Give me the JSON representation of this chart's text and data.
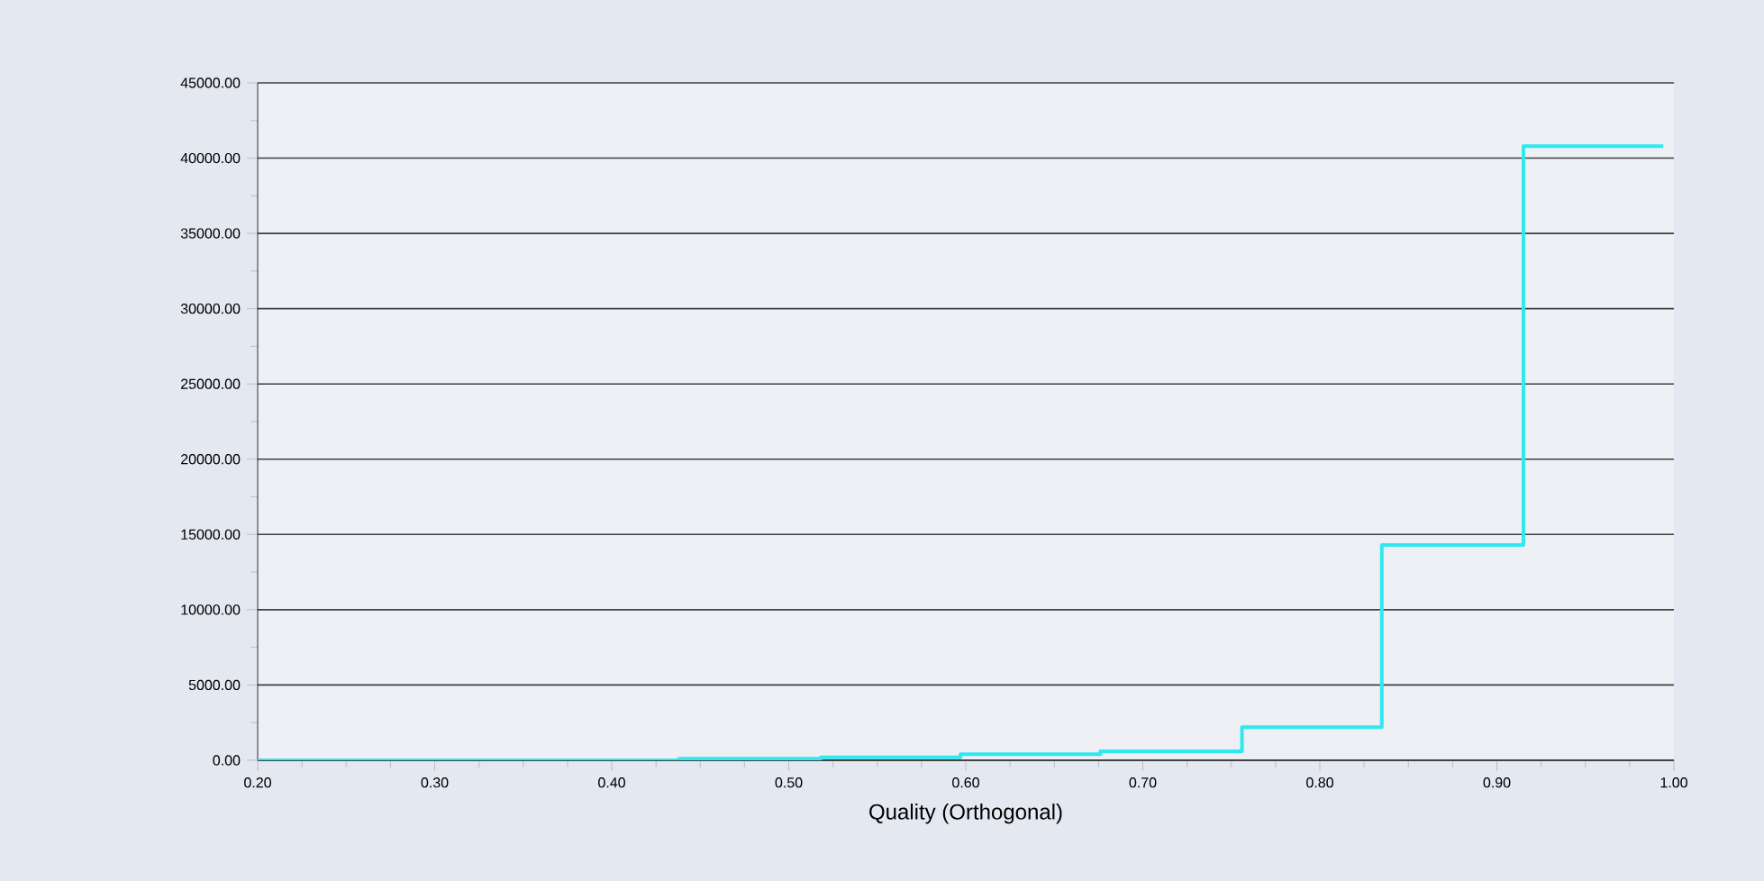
{
  "chart_data": {
    "type": "step",
    "xlabel": "Quality (Orthogonal)",
    "x": [
      0.2,
      0.279,
      0.359,
      0.438,
      0.518,
      0.597,
      0.676,
      0.756,
      0.835,
      0.915,
      0.994
    ],
    "series": [
      {
        "color": "#30e8f0",
        "values": [
          0,
          0,
          0,
          100,
          200,
          400,
          600,
          2200,
          14300,
          40800,
          40800
        ]
      }
    ],
    "xlim": [
      0.2,
      1.0
    ],
    "xticks": [
      {
        "value": 0.2,
        "label": "0.20"
      },
      {
        "value": 0.3,
        "label": "0.30"
      },
      {
        "value": 0.4,
        "label": "0.40"
      },
      {
        "value": 0.5,
        "label": "0.50"
      },
      {
        "value": 0.6,
        "label": "0.60"
      },
      {
        "value": 0.7,
        "label": "0.70"
      },
      {
        "value": 0.8,
        "label": "0.80"
      },
      {
        "value": 0.9,
        "label": "0.90"
      },
      {
        "value": 1.0,
        "label": "1.00"
      }
    ],
    "ylim": [
      0,
      45000
    ],
    "yticks": [
      {
        "value": 0,
        "label": "0.00"
      },
      {
        "value": 5000,
        "label": "5000.00"
      },
      {
        "value": 10000,
        "label": "10000.00"
      },
      {
        "value": 15000,
        "label": "15000.00"
      },
      {
        "value": 20000,
        "label": "20000.00"
      },
      {
        "value": 25000,
        "label": "25000.00"
      },
      {
        "value": 30000,
        "label": "30000.00"
      },
      {
        "value": 35000,
        "label": "35000.00"
      },
      {
        "value": 40000,
        "label": "40000.00"
      },
      {
        "value": 45000,
        "label": "45000.00"
      }
    ],
    "grid": "y",
    "marker": "none",
    "line_style": "solid"
  }
}
